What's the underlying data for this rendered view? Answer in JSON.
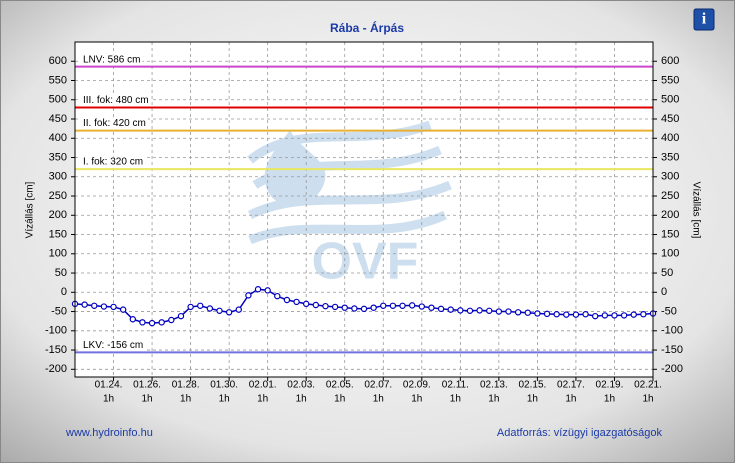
{
  "chart_data": {
    "type": "line",
    "title": "Rába - Árpás",
    "y_label": "Vízállás [cm]",
    "y2_label": "Vízállás [cm]",
    "watermark": "OVF",
    "footer_left": "www.hydroinfo.hu",
    "footer_right": "Adatforrás: vízügyi igazgatóságok",
    "xlim": [
      0,
      30
    ],
    "xticks": [
      {
        "value": 2,
        "label": "01.24."
      },
      {
        "value": 4,
        "label": "01.26."
      },
      {
        "value": 6,
        "label": "01.28."
      },
      {
        "value": 8,
        "label": "01.30."
      },
      {
        "value": 10,
        "label": "02.01."
      },
      {
        "value": 12,
        "label": "02.03."
      },
      {
        "value": 14,
        "label": "02.05."
      },
      {
        "value": 16,
        "label": "02.07."
      },
      {
        "value": 18,
        "label": "02.09."
      },
      {
        "value": 20,
        "label": "02.11."
      },
      {
        "value": 22,
        "label": "02.13."
      },
      {
        "value": 24,
        "label": "02.15."
      },
      {
        "value": 26,
        "label": "02.17."
      },
      {
        "value": 28,
        "label": "02.19."
      },
      {
        "value": 30,
        "label": "02.21."
      }
    ],
    "xtick_time": "1h",
    "ylim": [
      -220,
      650
    ],
    "yticks": [
      -200,
      -150,
      -100,
      -50,
      0,
      50,
      100,
      150,
      200,
      250,
      300,
      350,
      400,
      450,
      500,
      550,
      600
    ],
    "grid": true,
    "reference_lines": [
      {
        "label": "LNV: 586 cm",
        "value": 586,
        "color": "#cc44cc"
      },
      {
        "label": "III. fok: 480 cm",
        "value": 480,
        "color": "#e00000"
      },
      {
        "label": "II. fok: 420 cm",
        "value": 420,
        "color": "#e8b030"
      },
      {
        "label": "I. fok: 320 cm",
        "value": 320,
        "color": "#e8e860"
      },
      {
        "label": "LKV: -156 cm",
        "value": -156,
        "color": "#7070e0"
      }
    ],
    "x": [
      0,
      0.5,
      1,
      1.5,
      2,
      2.5,
      3,
      3.5,
      4,
      4.5,
      5,
      5.5,
      6,
      6.5,
      7,
      7.5,
      8,
      8.5,
      9,
      9.5,
      10,
      10.5,
      11,
      11.5,
      12,
      12.5,
      13,
      13.5,
      14,
      14.5,
      15,
      15.5,
      16,
      16.5,
      17,
      17.5,
      18,
      18.5,
      19,
      19.5,
      20,
      20.5,
      21,
      21.5,
      22,
      22.5,
      23,
      23.5,
      24,
      24.5,
      25,
      25.5,
      26,
      26.5,
      27,
      27.5,
      28,
      28.5,
      29,
      29.5,
      30
    ],
    "series": [
      {
        "name": "Vízállás",
        "color": "#0000c0",
        "values": [
          -30,
          -32,
          -35,
          -37,
          -38,
          -45,
          -70,
          -78,
          -80,
          -78,
          -72,
          -62,
          -38,
          -35,
          -42,
          -48,
          -52,
          -45,
          -8,
          8,
          5,
          -10,
          -20,
          -25,
          -30,
          -33,
          -36,
          -38,
          -40,
          -42,
          -43,
          -40,
          -35,
          -35,
          -35,
          -34,
          -37,
          -40,
          -43,
          -45,
          -47,
          -48,
          -47,
          -48,
          -50,
          -50,
          -52,
          -53,
          -55,
          -56,
          -57,
          -58,
          -58,
          -57,
          -62,
          -60,
          -60,
          -60,
          -58,
          -57,
          -55
        ]
      }
    ]
  }
}
